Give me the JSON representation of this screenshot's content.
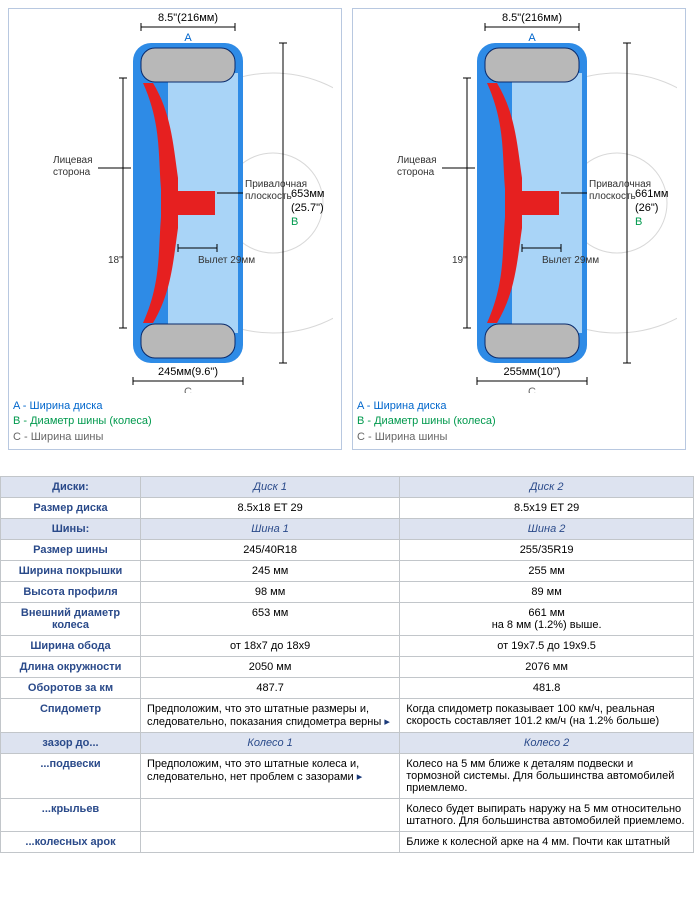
{
  "diagrams": [
    {
      "top_width": "8.5\"(216мм)",
      "top_letter": "A",
      "right_height": "653мм",
      "right_height_in": "(25.7\")",
      "right_letter": "В",
      "left_label1": "Лицевая",
      "left_label2": "сторона",
      "mount_label1": "Привалочная",
      "mount_label2": "плоскость",
      "offset_label": "Вылет 29мм",
      "diameter_label": "18\"",
      "bottom_width": "245мм(9.6\")",
      "bottom_letter": "С"
    },
    {
      "top_width": "8.5\"(216мм)",
      "top_letter": "A",
      "right_height": "661мм",
      "right_height_in": "(26\")",
      "right_letter": "В",
      "left_label1": "Лицевая",
      "left_label2": "сторона",
      "mount_label1": "Привалочная",
      "mount_label2": "плоскость",
      "offset_label": "Вылет 29мм",
      "diameter_label": "19\"",
      "bottom_width": "255мм(10\")",
      "bottom_letter": "С"
    }
  ],
  "legend": {
    "a": "A - Ширина диска",
    "b": "B - Диаметр шины (колеса)",
    "c": "С - Ширина шины"
  },
  "table": {
    "sections": [
      {
        "label": "Диски:",
        "col1": "Диск 1",
        "col2": "Диск 2"
      }
    ],
    "rows_disks": [
      {
        "label": "Размер диска",
        "c1": "8.5x18 ET 29",
        "c2": "8.5x19 ET 29"
      }
    ],
    "section_tires": {
      "label": "Шины:",
      "col1": "Шина 1",
      "col2": "Шина 2"
    },
    "rows_tires": [
      {
        "label": "Размер шины",
        "c1": "245/40R18",
        "c2": "255/35R19"
      },
      {
        "label": "Ширина покрышки",
        "c1": "245 мм",
        "c2": "255 мм"
      },
      {
        "label": "Высота профиля",
        "c1": "98 мм",
        "c2": "89 мм"
      },
      {
        "label": "Внешний диаметр колеса",
        "c1": "653 мм",
        "c2": "661 мм\nна 8 мм (1.2%) выше."
      },
      {
        "label": "Ширина обода",
        "c1": "от 18x7 до 18x9",
        "c2": "от 19x7.5 до 19x9.5"
      },
      {
        "label": "Длина окружности",
        "c1": "2050 мм",
        "c2": "2076 мм"
      },
      {
        "label": "Оборотов за км",
        "c1": "487.7",
        "c2": "481.8"
      },
      {
        "label": "Спидометр",
        "c1": "Предположим, что это штатные размеры и, следовательно, показания спидометра верны",
        "c2": "Когда спидометр показывает 100 км/ч, реальная скорость составляет 101.2 км/ч (на 1.2% больше)",
        "is_text": true,
        "link1": true
      }
    ],
    "section_gap": {
      "label": "зазор до...",
      "col1": "Колесо 1",
      "col2": "Колесо 2"
    },
    "rows_gap": [
      {
        "label": "...подвески",
        "c1": "Предположим, что это штатные колеса и, следовательно, нет проблем с зазорами",
        "c2": "Колесо на 5 мм ближе к деталям подвески и тормозной системы. Для большинства автомобилей приемлемо.",
        "is_text": true,
        "link1": true
      },
      {
        "label": "...крыльев",
        "c1": "",
        "c2": "Колесо будет выпирать наружу на 5 мм относительно штатного. Для большинства автомобилей приемлемо.",
        "is_text": true
      },
      {
        "label": "...колесных арок",
        "c1": "",
        "c2": "Ближе к колесной арке на 4 мм. Почти как штатный",
        "is_text": true
      }
    ]
  },
  "colors": {
    "panel_border": "#b8c8e0",
    "cell_border": "#c2c6ca",
    "header_bg": "#dde3f0",
    "label_color": "#2a4a8a",
    "rim_fill": "#b8b8b8",
    "rim_stroke": "#0a2a6a",
    "tire_fill": "#2e8be6",
    "spoke_fill": "#e62020"
  }
}
